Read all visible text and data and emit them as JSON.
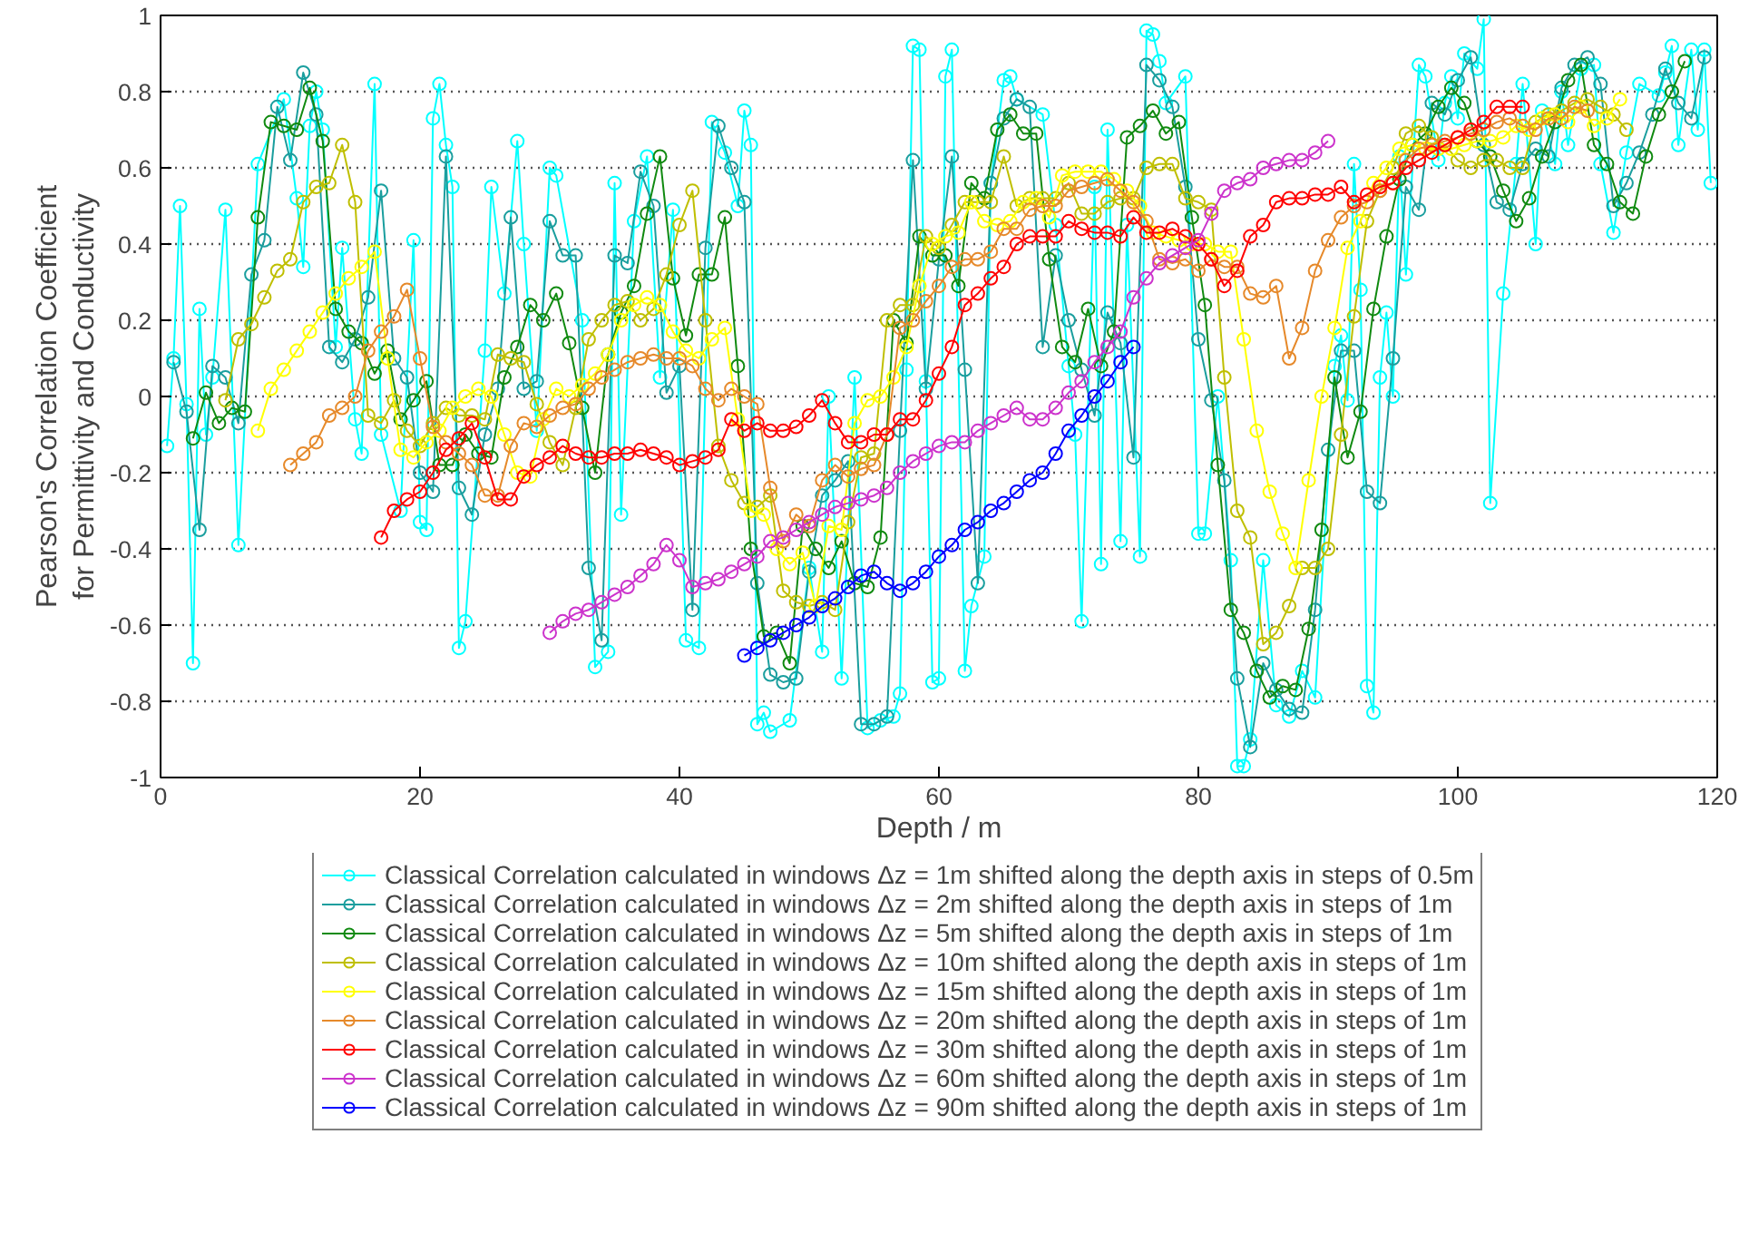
{
  "chart_data": {
    "type": "line",
    "xlabel": "Depth / m",
    "ylabel": "Pearson's Correlation Coefficient\nfor Permittivity and Conductivity",
    "xlim": [
      0,
      120
    ],
    "ylim": [
      -1,
      1
    ],
    "xticks": [
      0,
      20,
      40,
      60,
      80,
      100,
      120
    ],
    "yticks": [
      -1,
      -0.8,
      -0.6,
      -0.4,
      -0.2,
      0,
      0.2,
      0.4,
      0.6,
      0.8,
      1
    ],
    "grid": "y",
    "legend": "bottom",
    "marker": "circle",
    "line_style": "solid",
    "series": [
      {
        "name": "Classical Correlation calculated in windows Δz = 1m shifted along the depth axis in steps of 0.5m",
        "color": "#00ffff",
        "x": [
          0.5,
          1,
          1.5,
          2,
          2.5,
          3,
          3.5,
          4,
          5,
          6,
          7.5,
          9.5,
          10.5,
          11,
          11.5,
          12,
          12.5,
          13.5,
          14,
          15,
          15.5,
          16.5,
          17,
          18.5,
          19.5,
          20,
          20.5,
          21,
          21.5,
          22,
          22.5,
          23,
          23.5,
          25,
          25.5,
          26.5,
          27.5,
          28,
          29,
          30,
          30.5,
          32.5,
          33.5,
          34.5,
          35,
          35.5,
          36.5,
          37.5,
          38.5,
          39.5,
          40.5,
          41.5,
          42.5,
          43.5,
          44.5,
          45,
          45.5,
          46,
          46.5,
          47,
          48.5,
          50,
          51,
          51.5,
          52.5,
          53.5,
          54.5,
          55.5,
          56.5,
          57,
          57.5,
          58,
          58.5,
          59,
          59.5,
          60,
          60.5,
          61,
          62,
          62.5,
          63.5,
          64,
          65,
          65.5,
          66,
          68,
          69,
          70,
          70.5,
          71,
          72,
          72.5,
          73,
          74,
          74.5,
          75.5,
          76,
          76.5,
          77,
          77.5,
          79,
          80,
          80.5,
          81.5,
          82.5,
          83,
          83.5,
          84,
          85,
          86,
          87,
          88,
          89,
          90.5,
          91,
          91.5,
          92,
          92.5,
          93,
          93.5,
          94,
          94.5,
          95,
          95.5,
          96,
          97,
          97.5,
          98.5,
          99,
          99.5,
          100,
          100.5,
          101.5,
          102,
          102.5,
          103.5,
          104.5,
          105,
          106,
          106.5,
          107.5,
          108,
          108.5,
          109.5,
          110.5,
          111,
          112,
          113,
          114,
          115.5,
          116,
          116.5,
          117,
          118,
          118.5,
          119,
          119.5
        ],
        "values": [
          -0.13,
          0.1,
          0.5,
          -0.02,
          -0.7,
          0.23,
          -0.1,
          0.05,
          0.49,
          -0.39,
          0.61,
          0.78,
          0.52,
          0.34,
          0.71,
          0.8,
          0.7,
          0.13,
          0.39,
          -0.06,
          -0.15,
          0.82,
          -0.1,
          -0.3,
          0.41,
          -0.33,
          -0.35,
          0.73,
          0.82,
          0.66,
          0.55,
          -0.66,
          -0.59,
          0.12,
          0.55,
          0.27,
          0.67,
          0.4,
          -0.09,
          0.6,
          0.58,
          0.2,
          -0.71,
          -0.67,
          0.56,
          -0.31,
          0.46,
          0.63,
          0.05,
          0.49,
          -0.64,
          -0.66,
          0.72,
          0.64,
          0.5,
          0.75,
          0.66,
          -0.86,
          -0.83,
          -0.88,
          -0.85,
          -0.45,
          -0.67,
          0.0,
          -0.74,
          0.05,
          -0.87,
          -0.85,
          -0.84,
          -0.78,
          0.07,
          0.92,
          0.91,
          0.04,
          -0.75,
          -0.74,
          0.84,
          0.91,
          -0.72,
          -0.55,
          -0.42,
          0.56,
          0.83,
          0.84,
          0.78,
          0.74,
          0.45,
          0.08,
          -0.1,
          -0.59,
          0.55,
          -0.44,
          0.7,
          -0.38,
          0.45,
          -0.42,
          0.96,
          0.95,
          0.88,
          0.77,
          0.84,
          -0.36,
          -0.36,
          0.0,
          -0.43,
          -0.97,
          -0.97,
          -0.9,
          -0.43,
          -0.81,
          -0.84,
          -0.72,
          -0.79,
          0.08,
          0.16,
          -0.01,
          0.61,
          0.28,
          -0.76,
          -0.83,
          0.05,
          0.22,
          0.0,
          0.63,
          0.32,
          0.87,
          0.84,
          0.62,
          0.77,
          0.84,
          0.73,
          0.9,
          0.86,
          0.99,
          -0.28,
          0.27,
          0.61,
          0.82,
          0.4,
          0.75,
          0.61,
          0.8,
          0.66,
          0.86,
          0.87,
          0.61,
          0.43,
          0.64,
          0.82,
          0.79,
          0.85,
          0.92,
          0.66,
          0.91,
          0.7,
          0.91,
          0.56
        ]
      },
      {
        "name": "Classical Correlation calculated in windows Δz = 2m shifted along the depth axis in steps of 1m",
        "color": "#1a9e9e",
        "x": [
          1,
          2,
          3,
          4,
          5,
          6,
          7,
          8,
          9,
          10,
          11,
          12,
          13,
          14,
          15,
          16,
          17,
          18,
          19,
          20,
          21,
          22,
          23,
          24,
          25,
          26,
          27,
          28,
          29,
          30,
          31,
          32,
          33,
          34,
          35,
          36,
          37,
          38,
          39,
          40,
          41,
          42,
          43,
          44,
          45,
          46,
          47,
          48,
          49,
          50,
          51,
          52,
          53,
          54,
          55,
          56,
          57,
          58,
          59,
          60,
          61,
          62,
          63,
          64,
          65,
          66,
          67,
          68,
          69,
          70,
          71,
          72,
          73,
          74,
          75,
          76,
          77,
          78,
          79,
          80,
          81,
          82,
          83,
          84,
          85,
          86,
          87,
          88,
          89,
          90,
          91,
          92,
          93,
          94,
          95,
          96,
          97,
          98,
          99,
          100,
          101,
          102,
          103,
          104,
          105,
          106,
          107,
          108,
          109,
          110,
          111,
          112,
          113,
          114,
          115,
          116,
          117,
          118,
          119
        ],
        "values": [
          0.09,
          -0.04,
          -0.35,
          0.08,
          0.05,
          -0.07,
          0.32,
          0.41,
          0.76,
          0.62,
          0.85,
          0.74,
          0.13,
          0.09,
          0.15,
          0.26,
          0.54,
          0.1,
          0.05,
          -0.2,
          -0.25,
          0.63,
          -0.24,
          -0.31,
          -0.1,
          0.02,
          0.47,
          0.02,
          0.04,
          0.46,
          0.37,
          0.37,
          -0.45,
          -0.64,
          0.37,
          0.35,
          0.59,
          0.5,
          0.01,
          0.08,
          -0.56,
          0.39,
          0.71,
          0.6,
          0.51,
          -0.49,
          -0.73,
          -0.75,
          -0.74,
          -0.46,
          -0.26,
          -0.22,
          -0.17,
          -0.86,
          -0.86,
          -0.84,
          -0.09,
          0.62,
          0.02,
          0.36,
          0.63,
          0.07,
          -0.49,
          0.56,
          0.73,
          0.78,
          0.76,
          0.13,
          0.37,
          0.2,
          0.07,
          -0.05,
          0.22,
          0.14,
          -0.16,
          0.87,
          0.83,
          0.76,
          0.55,
          0.15,
          -0.01,
          -0.22,
          -0.74,
          -0.92,
          -0.7,
          -0.77,
          -0.82,
          -0.83,
          -0.56,
          -0.14,
          0.12,
          0.12,
          -0.25,
          -0.28,
          0.1,
          0.55,
          0.49,
          0.77,
          0.74,
          0.83,
          0.89,
          0.66,
          0.51,
          0.49,
          0.61,
          0.65,
          0.63,
          0.81,
          0.87,
          0.89,
          0.82,
          0.5,
          0.56,
          0.64,
          0.74,
          0.86,
          0.77,
          0.73,
          0.89
        ]
      },
      {
        "name": "Classical Correlation calculated in windows Δz = 5m shifted along the depth axis in steps of 1m",
        "color": "#108a10",
        "x": [
          2.5,
          3.5,
          4.5,
          5.5,
          6.5,
          7.5,
          8.5,
          9.5,
          10.5,
          11.5,
          12.5,
          13.5,
          14.5,
          15.5,
          16.5,
          17.5,
          18.5,
          19.5,
          20.5,
          21.5,
          22.5,
          23.5,
          24.5,
          25.5,
          26.5,
          27.5,
          28.5,
          29.5,
          30.5,
          31.5,
          32.5,
          33.5,
          34.5,
          35.5,
          36.5,
          37.5,
          38.5,
          39.5,
          40.5,
          41.5,
          42.5,
          43.5,
          44.5,
          45.5,
          46.5,
          47.5,
          48.5,
          49.5,
          50.5,
          51.5,
          52.5,
          53.5,
          54.5,
          55.5,
          56.5,
          57.5,
          58.5,
          59.5,
          60.5,
          61.5,
          62.5,
          63.5,
          64.5,
          65.5,
          66.5,
          67.5,
          68.5,
          69.5,
          70.5,
          71.5,
          72.5,
          73.5,
          74.5,
          75.5,
          76.5,
          77.5,
          78.5,
          79.5,
          80.5,
          81.5,
          82.5,
          83.5,
          84.5,
          85.5,
          86.5,
          87.5,
          88.5,
          89.5,
          90.5,
          91.5,
          92.5,
          93.5,
          94.5,
          95.5,
          96.5,
          97.5,
          98.5,
          99.5,
          100.5,
          101.5,
          102.5,
          103.5,
          104.5,
          105.5,
          106.5,
          107.5,
          108.5,
          109.5,
          110.5,
          111.5,
          112.5,
          113.5,
          114.5,
          115.5,
          116.5,
          117.5
        ],
        "values": [
          -0.11,
          0.01,
          -0.07,
          -0.03,
          -0.04,
          0.47,
          0.72,
          0.71,
          0.7,
          0.81,
          0.67,
          0.23,
          0.17,
          0.14,
          0.06,
          0.12,
          -0.06,
          -0.01,
          0.04,
          -0.18,
          -0.18,
          -0.1,
          -0.15,
          -0.16,
          0.05,
          0.13,
          0.24,
          0.2,
          0.27,
          0.14,
          -0.03,
          -0.2,
          0.11,
          0.22,
          0.29,
          0.48,
          0.63,
          0.31,
          0.16,
          0.32,
          0.32,
          0.47,
          0.08,
          -0.4,
          -0.63,
          -0.62,
          -0.7,
          -0.34,
          -0.4,
          -0.45,
          -0.38,
          -0.49,
          -0.5,
          -0.37,
          0.2,
          0.14,
          0.42,
          0.37,
          0.37,
          0.29,
          0.56,
          0.52,
          0.7,
          0.74,
          0.69,
          0.69,
          0.36,
          0.13,
          0.09,
          0.23,
          0.08,
          0.17,
          0.68,
          0.71,
          0.75,
          0.69,
          0.72,
          0.47,
          0.24,
          -0.18,
          -0.56,
          -0.62,
          -0.72,
          -0.79,
          -0.76,
          -0.77,
          -0.61,
          -0.35,
          0.05,
          -0.16,
          -0.04,
          0.23,
          0.42,
          0.57,
          0.66,
          0.69,
          0.76,
          0.81,
          0.77,
          0.67,
          0.63,
          0.54,
          0.46,
          0.52,
          0.63,
          0.72,
          0.83,
          0.87,
          0.66,
          0.61,
          0.51,
          0.48,
          0.63,
          0.74,
          0.8,
          0.88
        ]
      },
      {
        "name": "Classical Correlation calculated in windows Δz = 10m shifted along the depth axis in steps of 1m",
        "color": "#bfbf00",
        "x": [
          5,
          6,
          7,
          8,
          9,
          10,
          11,
          12,
          13,
          14,
          15,
          16,
          17,
          18,
          19,
          20,
          21,
          22,
          23,
          24,
          25,
          26,
          27,
          28,
          29,
          30,
          31,
          32,
          33,
          34,
          35,
          36,
          37,
          38,
          39,
          40,
          41,
          42,
          43,
          44,
          45,
          46,
          47,
          48,
          49,
          50,
          51,
          52,
          53,
          54,
          55,
          56,
          57,
          58,
          59,
          60,
          61,
          62,
          63,
          64,
          65,
          66,
          67,
          68,
          69,
          70,
          71,
          72,
          73,
          74,
          75,
          76,
          77,
          78,
          79,
          80,
          81,
          82,
          83,
          84,
          85,
          86,
          87,
          88,
          89,
          90,
          91,
          92,
          93,
          94,
          95,
          96,
          97,
          98,
          99,
          100,
          101,
          102,
          103,
          104,
          105,
          106,
          107,
          108,
          109,
          110,
          111,
          112,
          113
        ],
        "values": [
          -0.01,
          0.15,
          0.19,
          0.26,
          0.33,
          0.36,
          0.51,
          0.55,
          0.56,
          0.66,
          0.51,
          -0.05,
          -0.07,
          -0.01,
          -0.09,
          -0.13,
          -0.07,
          -0.03,
          -0.05,
          -0.05,
          -0.06,
          0.11,
          0.1,
          0.09,
          -0.02,
          -0.12,
          -0.18,
          -0.03,
          0.15,
          0.2,
          0.24,
          0.25,
          0.2,
          0.23,
          0.32,
          0.45,
          0.54,
          0.2,
          -0.13,
          -0.22,
          -0.28,
          -0.29,
          -0.26,
          -0.51,
          -0.54,
          -0.55,
          -0.54,
          -0.56,
          -0.33,
          -0.16,
          -0.15,
          0.2,
          0.24,
          0.24,
          0.42,
          0.39,
          0.45,
          0.51,
          0.51,
          0.51,
          0.63,
          0.5,
          0.52,
          0.52,
          0.52,
          0.56,
          0.48,
          0.48,
          0.51,
          0.52,
          0.52,
          0.6,
          0.61,
          0.61,
          0.52,
          0.51,
          0.49,
          0.05,
          -0.3,
          -0.37,
          -0.65,
          -0.62,
          -0.55,
          -0.45,
          -0.45,
          -0.4,
          -0.1,
          0.21,
          0.46,
          0.54,
          0.6,
          0.69,
          0.71,
          0.68,
          0.66,
          0.62,
          0.6,
          0.62,
          0.62,
          0.6,
          0.6,
          0.72,
          0.74,
          0.75,
          0.77,
          0.78,
          0.76,
          0.74,
          0.7
        ]
      },
      {
        "name": "Classical Correlation calculated in windows Δz = 15m shifted along the depth axis in steps of 1m",
        "color": "#ffff00",
        "x": [
          7.5,
          8.5,
          9.5,
          10.5,
          11.5,
          12.5,
          13.5,
          14.5,
          15.5,
          16.5,
          17.5,
          18.5,
          19.5,
          20.5,
          21.5,
          22.5,
          23.5,
          24.5,
          25.5,
          26.5,
          27.5,
          28.5,
          29.5,
          30.5,
          31.5,
          32.5,
          33.5,
          34.5,
          35.5,
          36.5,
          37.5,
          38.5,
          39.5,
          40.5,
          41.5,
          42.5,
          43.5,
          44.5,
          45.5,
          46.5,
          47.5,
          48.5,
          49.5,
          50.5,
          51.5,
          52.5,
          53.5,
          54.5,
          55.5,
          56.5,
          57.5,
          58.5,
          59.5,
          60.5,
          61.5,
          62.5,
          63.5,
          64.5,
          65.5,
          66.5,
          67.5,
          68.5,
          69.5,
          70.5,
          71.5,
          72.5,
          73.5,
          74.5,
          75.5,
          76.5,
          77.5,
          78.5,
          79.5,
          80.5,
          81.5,
          82.5,
          83.5,
          84.5,
          85.5,
          86.5,
          87.5,
          88.5,
          89.5,
          90.5,
          91.5,
          92.5,
          93.5,
          94.5,
          95.5,
          96.5,
          97.5,
          98.5,
          99.5,
          100.5,
          101.5,
          102.5,
          103.5,
          104.5,
          105.5,
          106.5,
          107.5,
          108.5,
          109.5,
          110.5,
          111.5,
          112.5
        ],
        "values": [
          -0.09,
          0.02,
          0.07,
          0.12,
          0.17,
          0.22,
          0.27,
          0.31,
          0.34,
          0.38,
          0.1,
          -0.14,
          -0.16,
          -0.12,
          -0.09,
          -0.03,
          0.0,
          0.02,
          0.0,
          -0.1,
          -0.2,
          -0.21,
          -0.06,
          0.02,
          0.0,
          0.03,
          0.06,
          0.11,
          0.2,
          0.24,
          0.26,
          0.24,
          0.17,
          0.12,
          0.1,
          0.15,
          0.18,
          -0.06,
          -0.3,
          -0.31,
          -0.4,
          -0.44,
          -0.41,
          -0.55,
          -0.34,
          -0.35,
          -0.07,
          -0.01,
          0.0,
          0.05,
          0.13,
          0.29,
          0.4,
          0.42,
          0.43,
          0.51,
          0.46,
          0.45,
          0.46,
          0.51,
          0.52,
          0.47,
          0.58,
          0.59,
          0.59,
          0.59,
          0.57,
          0.54,
          0.5,
          0.43,
          0.42,
          0.41,
          0.4,
          0.4,
          0.38,
          0.38,
          0.15,
          -0.09,
          -0.25,
          -0.36,
          -0.45,
          -0.22,
          0.0,
          0.18,
          0.39,
          0.46,
          0.56,
          0.6,
          0.65,
          0.66,
          0.65,
          0.65,
          0.65,
          0.66,
          0.67,
          0.67,
          0.68,
          0.71,
          0.7,
          0.73,
          0.74,
          0.72,
          0.76,
          0.71,
          0.73,
          0.78
        ]
      },
      {
        "name": "Classical Correlation calculated in windows Δz = 20m shifted along the depth axis in steps of 1m",
        "color": "#e6892a",
        "x": [
          10,
          11,
          12,
          13,
          14,
          15,
          16,
          17,
          18,
          19,
          20,
          21,
          22,
          23,
          24,
          25,
          26,
          27,
          28,
          29,
          30,
          31,
          32,
          33,
          34,
          35,
          36,
          37,
          38,
          39,
          40,
          41,
          42,
          43,
          44,
          45,
          46,
          47,
          48,
          49,
          50,
          51,
          52,
          53,
          54,
          55,
          56,
          57,
          58,
          59,
          60,
          61,
          62,
          63,
          64,
          65,
          66,
          67,
          68,
          69,
          70,
          71,
          72,
          73,
          74,
          75,
          76,
          77,
          78,
          79,
          80,
          81,
          82,
          83,
          84,
          85,
          86,
          87,
          88,
          89,
          90,
          91,
          92,
          93,
          94,
          95,
          96,
          97,
          98,
          99,
          100,
          101,
          102,
          103,
          104,
          105,
          106,
          107,
          108,
          109,
          110
        ],
        "values": [
          -0.18,
          -0.15,
          -0.12,
          -0.05,
          -0.03,
          0.0,
          0.12,
          0.17,
          0.21,
          0.28,
          0.1,
          -0.08,
          -0.12,
          -0.15,
          -0.18,
          -0.26,
          -0.26,
          -0.13,
          -0.07,
          -0.08,
          -0.05,
          -0.03,
          -0.02,
          0.02,
          0.05,
          0.07,
          0.09,
          0.1,
          0.11,
          0.1,
          0.1,
          0.08,
          0.02,
          -0.01,
          0.02,
          0.0,
          -0.02,
          -0.24,
          -0.38,
          -0.31,
          -0.34,
          -0.22,
          -0.18,
          -0.21,
          -0.19,
          -0.18,
          -0.1,
          0.18,
          0.2,
          0.25,
          0.29,
          0.34,
          0.36,
          0.36,
          0.38,
          0.44,
          0.44,
          0.49,
          0.5,
          0.5,
          0.54,
          0.55,
          0.56,
          0.57,
          0.54,
          0.51,
          0.46,
          0.36,
          0.35,
          0.36,
          0.33,
          0.36,
          0.34,
          0.34,
          0.27,
          0.26,
          0.29,
          0.1,
          0.18,
          0.33,
          0.41,
          0.47,
          0.5,
          0.51,
          0.54,
          0.56,
          0.62,
          0.65,
          0.66,
          0.67,
          0.68,
          0.69,
          0.7,
          0.72,
          0.73,
          0.71,
          0.7,
          0.73,
          0.73,
          0.76,
          0.75
        ]
      },
      {
        "name": "Classical Correlation calculated in windows Δz = 30m shifted along the depth axis in steps of 1m",
        "color": "#ff0000",
        "x": [
          17,
          18,
          19,
          20,
          21,
          22,
          23,
          24,
          25,
          26,
          27,
          28,
          29,
          30,
          31,
          32,
          33,
          34,
          35,
          36,
          37,
          38,
          39,
          40,
          41,
          42,
          43,
          44,
          45,
          46,
          47,
          48,
          49,
          50,
          51,
          52,
          53,
          54,
          55,
          56,
          57,
          58,
          59,
          60,
          61,
          62,
          63,
          64,
          65,
          66,
          67,
          68,
          69,
          70,
          71,
          72,
          73,
          74,
          75,
          76,
          77,
          78,
          79,
          80,
          81,
          82,
          83,
          84,
          85,
          86,
          87,
          88,
          89,
          90,
          91,
          92,
          93,
          94,
          95,
          96,
          97,
          98,
          99,
          100,
          101,
          102,
          103,
          104,
          105
        ],
        "values": [
          -0.37,
          -0.3,
          -0.27,
          -0.25,
          -0.2,
          -0.14,
          -0.11,
          -0.07,
          -0.16,
          -0.27,
          -0.27,
          -0.21,
          -0.18,
          -0.16,
          -0.13,
          -0.15,
          -0.16,
          -0.16,
          -0.15,
          -0.15,
          -0.14,
          -0.15,
          -0.16,
          -0.18,
          -0.17,
          -0.16,
          -0.14,
          -0.06,
          -0.09,
          -0.07,
          -0.09,
          -0.09,
          -0.08,
          -0.05,
          -0.01,
          -0.07,
          -0.12,
          -0.12,
          -0.1,
          -0.1,
          -0.06,
          -0.06,
          -0.01,
          0.06,
          0.13,
          0.24,
          0.27,
          0.31,
          0.34,
          0.4,
          0.42,
          0.42,
          0.42,
          0.46,
          0.44,
          0.43,
          0.43,
          0.42,
          0.47,
          0.43,
          0.43,
          0.44,
          0.42,
          0.4,
          0.36,
          0.29,
          0.33,
          0.42,
          0.45,
          0.51,
          0.52,
          0.52,
          0.53,
          0.53,
          0.55,
          0.51,
          0.53,
          0.55,
          0.56,
          0.6,
          0.62,
          0.64,
          0.66,
          0.68,
          0.7,
          0.72,
          0.76,
          0.76,
          0.76
        ]
      },
      {
        "name": "Classical Correlation calculated in windows Δz = 60m shifted along the depth axis in steps of 1m",
        "color": "#cc33cc",
        "x": [
          30,
          31,
          32,
          33,
          34,
          35,
          36,
          37,
          38,
          39,
          40,
          41,
          42,
          43,
          44,
          45,
          46,
          47,
          48,
          49,
          50,
          51,
          52,
          53,
          54,
          55,
          56,
          57,
          58,
          59,
          60,
          61,
          62,
          63,
          64,
          65,
          66,
          67,
          68,
          69,
          70,
          71,
          72,
          73,
          74,
          75,
          76,
          77,
          78,
          79,
          80,
          81,
          82,
          83,
          84,
          85,
          86,
          87,
          88,
          89,
          90
        ],
        "values": [
          -0.62,
          -0.59,
          -0.57,
          -0.56,
          -0.54,
          -0.52,
          -0.5,
          -0.47,
          -0.44,
          -0.39,
          -0.43,
          -0.5,
          -0.49,
          -0.48,
          -0.46,
          -0.44,
          -0.42,
          -0.38,
          -0.37,
          -0.35,
          -0.33,
          -0.31,
          -0.29,
          -0.28,
          -0.27,
          -0.26,
          -0.24,
          -0.2,
          -0.17,
          -0.15,
          -0.13,
          -0.12,
          -0.12,
          -0.09,
          -0.07,
          -0.05,
          -0.03,
          -0.06,
          -0.06,
          -0.03,
          0.01,
          0.04,
          0.09,
          0.13,
          0.17,
          0.26,
          0.31,
          0.35,
          0.37,
          0.39,
          0.41,
          0.48,
          0.54,
          0.56,
          0.57,
          0.6,
          0.61,
          0.62,
          0.62,
          0.64,
          0.67
        ]
      },
      {
        "name": "Classical Correlation calculated in windows Δz = 90m shifted along the depth axis in steps of 1m",
        "color": "#0000ff",
        "x": [
          45,
          46,
          47,
          48,
          49,
          50,
          51,
          52,
          53,
          54,
          55,
          56,
          57,
          58,
          59,
          60,
          61,
          62,
          63,
          64,
          65,
          66,
          67,
          68,
          69,
          70,
          71,
          72,
          73,
          74,
          75
        ],
        "values": [
          -0.68,
          -0.66,
          -0.64,
          -0.62,
          -0.6,
          -0.58,
          -0.55,
          -0.53,
          -0.5,
          -0.47,
          -0.46,
          -0.49,
          -0.51,
          -0.49,
          -0.46,
          -0.42,
          -0.39,
          -0.35,
          -0.33,
          -0.3,
          -0.28,
          -0.25,
          -0.22,
          -0.2,
          -0.15,
          -0.09,
          -0.05,
          0.0,
          0.04,
          0.09,
          0.13
        ]
      }
    ]
  }
}
